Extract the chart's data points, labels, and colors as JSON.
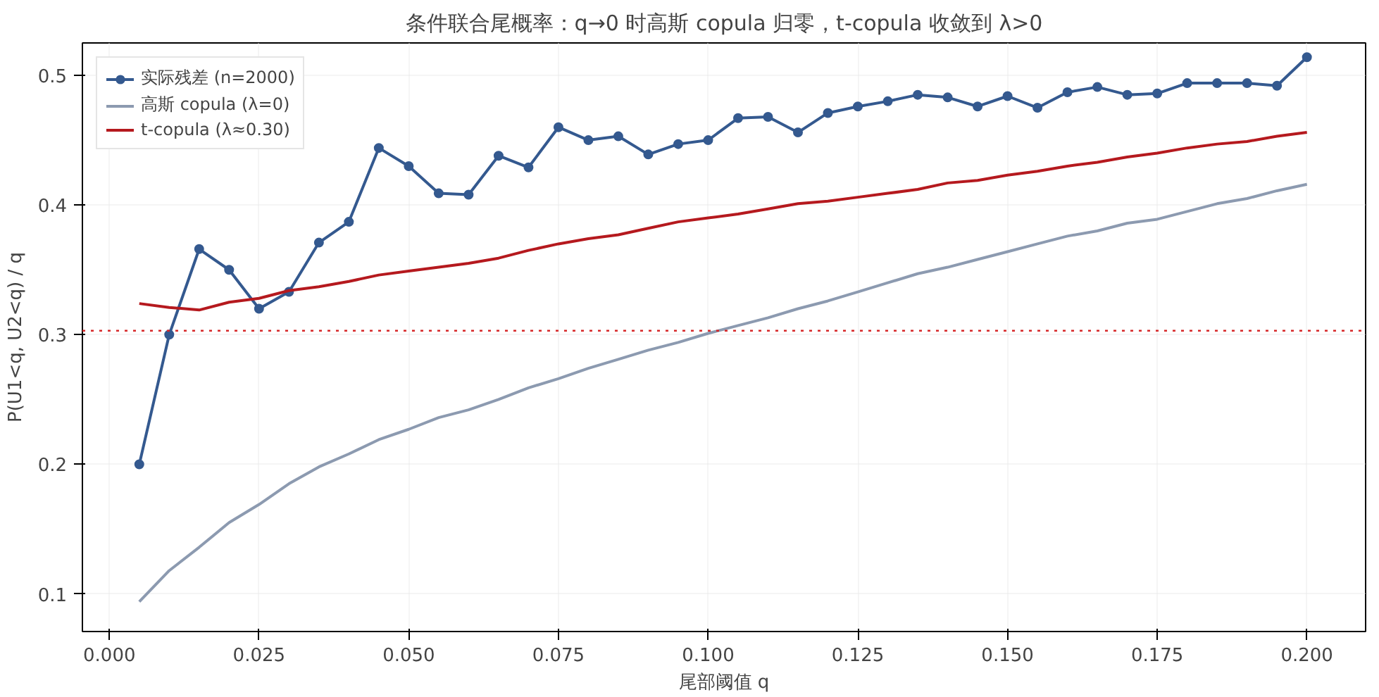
{
  "chart_data": {
    "type": "line",
    "title": "条件联合尾概率：q→0 时高斯 copula 归零，t-copula 收敛到 λ>0",
    "xlabel": "尾部阈值 q",
    "ylabel": "P(U1<q, U2<q) / q",
    "x": [
      0.005,
      0.01,
      0.015,
      0.02,
      0.025,
      0.03,
      0.035,
      0.04,
      0.045,
      0.05,
      0.055,
      0.06,
      0.065,
      0.07,
      0.075,
      0.08,
      0.085,
      0.09,
      0.095,
      0.1,
      0.105,
      0.11,
      0.115,
      0.12,
      0.125,
      0.13,
      0.135,
      0.14,
      0.145,
      0.15,
      0.155,
      0.16,
      0.165,
      0.17,
      0.175,
      0.18,
      0.185,
      0.19,
      0.195,
      0.2
    ],
    "series": [
      {
        "name": "实际残差 (n=2000)",
        "color": "#34598f",
        "marker": "circle",
        "values": [
          0.2,
          0.3,
          0.366,
          0.35,
          0.32,
          0.333,
          0.371,
          0.387,
          0.444,
          0.43,
          0.409,
          0.408,
          0.438,
          0.429,
          0.46,
          0.45,
          0.453,
          0.439,
          0.447,
          0.45,
          0.467,
          0.468,
          0.456,
          0.471,
          0.476,
          0.48,
          0.485,
          0.483,
          0.476,
          0.484,
          0.475,
          0.487,
          0.491,
          0.485,
          0.486,
          0.494,
          0.494,
          0.494,
          0.492,
          0.514
        ]
      },
      {
        "name": "高斯 copula (λ=0)",
        "color": "#8c9ab0",
        "marker": "none",
        "values": [
          0.094,
          0.118,
          0.136,
          0.155,
          0.169,
          0.185,
          0.198,
          0.208,
          0.219,
          0.227,
          0.236,
          0.242,
          0.25,
          0.259,
          0.266,
          0.274,
          0.281,
          0.288,
          0.294,
          0.301,
          0.307,
          0.313,
          0.32,
          0.326,
          0.333,
          0.34,
          0.347,
          0.352,
          0.358,
          0.364,
          0.37,
          0.376,
          0.38,
          0.386,
          0.389,
          0.395,
          0.401,
          0.405,
          0.411,
          0.416
        ]
      },
      {
        "name": "t-copula (λ≈0.30)",
        "color": "#b5191e",
        "marker": "none",
        "values": [
          0.324,
          0.321,
          0.319,
          0.325,
          0.328,
          0.334,
          0.337,
          0.341,
          0.346,
          0.349,
          0.352,
          0.355,
          0.359,
          0.365,
          0.37,
          0.374,
          0.377,
          0.382,
          0.387,
          0.39,
          0.393,
          0.397,
          0.401,
          0.403,
          0.406,
          0.409,
          0.412,
          0.417,
          0.419,
          0.423,
          0.426,
          0.43,
          0.433,
          0.437,
          0.44,
          0.444,
          0.447,
          0.449,
          0.453,
          0.456
        ]
      }
    ],
    "ref_lines": [
      {
        "axis": "y",
        "value": 0.303,
        "color": "#d62728",
        "line_style": "dotted"
      }
    ],
    "xlim": [
      -0.0045,
      0.2098
    ],
    "ylim": [
      0.071,
      0.525
    ],
    "xticks": [
      {
        "value": 0,
        "label": "0.000"
      },
      {
        "value": 0.025,
        "label": "0.025"
      },
      {
        "value": 0.05,
        "label": "0.050"
      },
      {
        "value": 0.075,
        "label": "0.075"
      },
      {
        "value": 0.1,
        "label": "0.100"
      },
      {
        "value": 0.125,
        "label": "0.125"
      },
      {
        "value": 0.15,
        "label": "0.150"
      },
      {
        "value": 0.175,
        "label": "0.175"
      },
      {
        "value": 0.2,
        "label": "0.200"
      }
    ],
    "yticks": [
      0.1,
      0.2,
      0.3,
      0.4,
      0.5
    ],
    "grid": true,
    "legend": "top left",
    "line_style": "solid"
  }
}
